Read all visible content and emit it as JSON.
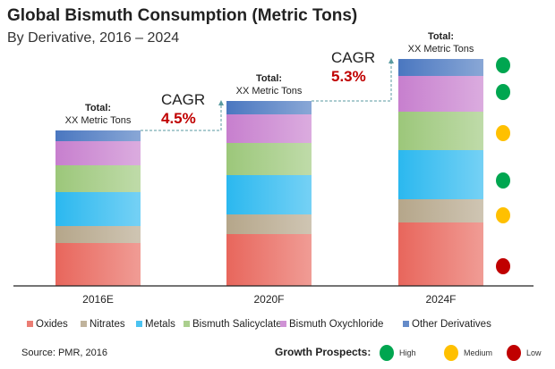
{
  "chart_data": {
    "type": "bar",
    "stacked": true,
    "title": "Global Bismuth Consumption (Metric Tons)",
    "subtitle": "By Derivative, 2016 – 2024",
    "categories": [
      "2016E",
      "2020F",
      "2024F"
    ],
    "series": [
      {
        "name": "Oxides",
        "color": "#e8665c",
        "values": [
          48,
          58,
          71
        ],
        "growth": "Low"
      },
      {
        "name": "Nitrates",
        "color": "#b5a68a",
        "values": [
          19,
          22,
          26
        ],
        "growth": "Medium"
      },
      {
        "name": "Metals",
        "color": "#2bb8ef",
        "values": [
          38,
          44,
          55
        ],
        "growth": "High"
      },
      {
        "name": "Bismuth Salicyclate",
        "color": "#9cc77a",
        "values": [
          30,
          36,
          43
        ],
        "growth": "Medium"
      },
      {
        "name": "Bismuth Oxychloride",
        "color": "#c77fce",
        "values": [
          27,
          32,
          40
        ],
        "growth": "High"
      },
      {
        "name": "Other Derivatives",
        "color": "#4a77c0",
        "values": [
          12,
          15,
          19
        ],
        "growth": "High"
      }
    ],
    "totals": [
      {
        "label": "Total:",
        "value": "XX Metric Tons"
      },
      {
        "label": "Total:",
        "value": "XX Metric Tons"
      },
      {
        "label": "Total:",
        "value": "XX Metric Tons"
      }
    ],
    "cagr": [
      {
        "label": "CAGR",
        "value": "4.5%"
      },
      {
        "label": "CAGR",
        "value": "5.3%"
      }
    ],
    "legend_position": "bottom",
    "grid": false,
    "xlabel": "",
    "ylabel": ""
  },
  "growth_legend": {
    "title": "Growth Prospects:",
    "items": [
      {
        "label": "High",
        "color": "#00a650"
      },
      {
        "label": "Medium",
        "color": "#ffc000"
      },
      {
        "label": "Low",
        "color": "#c00000"
      }
    ]
  },
  "source": "Source: PMR, 2016"
}
